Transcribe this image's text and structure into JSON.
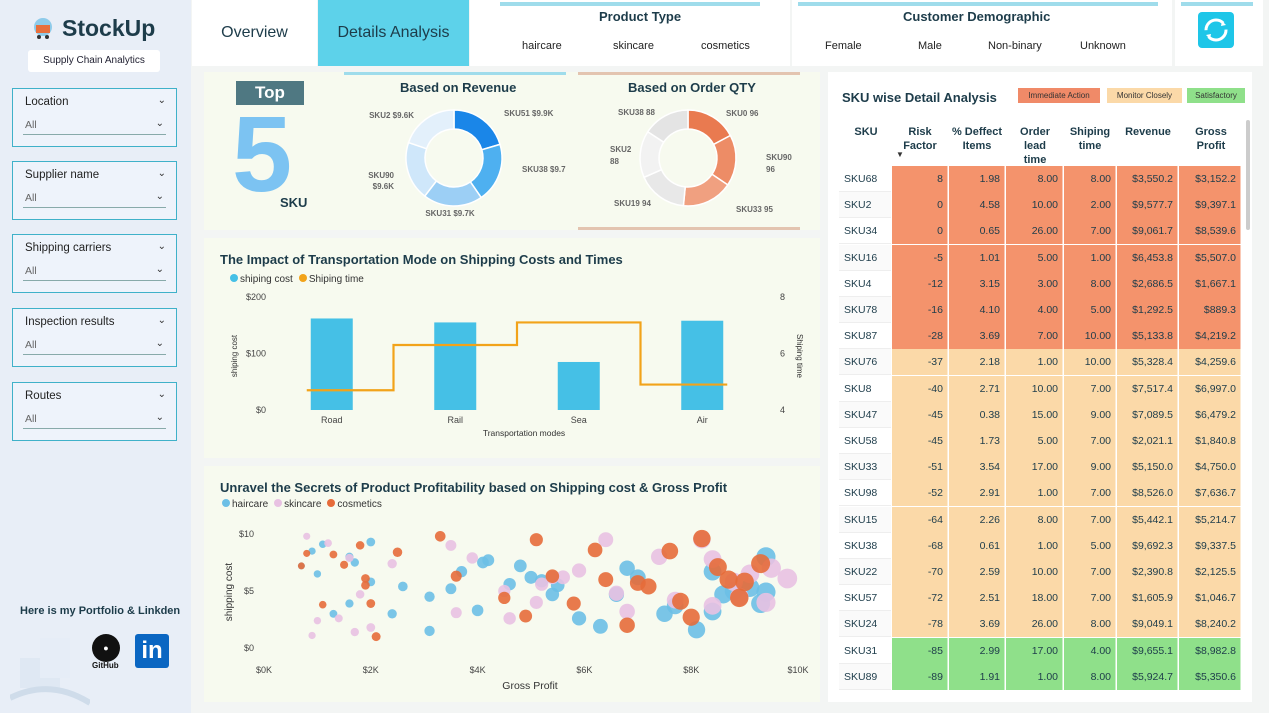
{
  "brand": {
    "name": "StockUp",
    "tagline": "Supply Chain Analytics"
  },
  "tabs": [
    {
      "label": "Overview"
    },
    {
      "label": "Details Analysis"
    }
  ],
  "filters": [
    {
      "label": "Location",
      "value": "All"
    },
    {
      "label": "Supplier name",
      "value": "All"
    },
    {
      "label": "Shipping carriers",
      "value": "All"
    },
    {
      "label": "Inspection results",
      "value": "All"
    },
    {
      "label": "Routes",
      "value": "All"
    }
  ],
  "portfolio": {
    "label": "Here is my Portfolio & Linkden",
    "github_label": "GitHub",
    "linkedin_label": "in"
  },
  "product_type": {
    "title": "Product Type",
    "options": [
      "haircare",
      "skincare",
      "cosmetics"
    ]
  },
  "customer_demo": {
    "title": "Customer Demographic",
    "options": [
      "Female",
      "Male",
      "Non-binary",
      "Unknown"
    ]
  },
  "top5": {
    "badge": "Top",
    "number": "5",
    "unit": "SKU"
  },
  "revenue_donut": {
    "title": "Based on Revenue",
    "slices": [
      {
        "label": "SKU51 $9.9K",
        "value": 9.9,
        "color": "#1a86e8"
      },
      {
        "label": "SKU38 $9.7K",
        "value": 9.7,
        "color": "#4eb0f0"
      },
      {
        "label": "SKU31 $9.7K",
        "value": 9.7,
        "color": "#9ccff5"
      },
      {
        "label": "SKU90 $9.6K",
        "value": 9.6,
        "color": "#cfe7fa"
      },
      {
        "label": "SKU2 $9.6K",
        "value": 9.6,
        "color": "#e3f0fb"
      }
    ]
  },
  "order_donut": {
    "title": "Based on Order QTY",
    "slices": [
      {
        "label": "SKU0 96",
        "value": 96,
        "color": "#e97a50"
      },
      {
        "label": "SKU90 96",
        "value": 96,
        "color": "#ed8c66"
      },
      {
        "label": "SKU33 95",
        "value": 95,
        "color": "#f0a080"
      },
      {
        "label": "SKU19 94",
        "value": 94,
        "color": "#e8e8e8"
      },
      {
        "label": "SKU2 88",
        "value": 88,
        "color": "#f2f2f2"
      },
      {
        "label": "SKU38 88",
        "value": 88,
        "color": "#e4e4e4"
      }
    ]
  },
  "transport_chart": {
    "title": "The Impact of Transportation Mode on Shipping Costs and Times",
    "legend": [
      "shiping cost",
      "Shiping time"
    ],
    "xlabel": "Transportation modes",
    "ylabel_left": "shiping cost",
    "ylabel_right": "Shiping time",
    "yticks_left": [
      "$200",
      "$100",
      "$0"
    ],
    "yticks_right": [
      "8",
      "6",
      "4"
    ]
  },
  "scatter_chart": {
    "title": "Unravel the Secrets of Product Profitability based on Shipping cost & Gross Profit",
    "legend": [
      "haircare",
      "skincare",
      "cosmetics"
    ],
    "xlabel": "Gross Profit",
    "ylabel": "shipping cost",
    "xticks": [
      "$0K",
      "$2K",
      "$4K",
      "$6K",
      "$8K",
      "$10K"
    ],
    "yticks": [
      "$10",
      "$5",
      "$0"
    ]
  },
  "chart_data": [
    {
      "type": "bar",
      "title": "The Impact of Transportation Mode on Shipping Costs and Times",
      "categories": [
        "Road",
        "Rail",
        "Sea",
        "Air"
      ],
      "series": [
        {
          "name": "shiping cost",
          "type": "bar",
          "values": [
            162,
            155,
            85,
            158
          ],
          "color": "#45c0e6"
        },
        {
          "name": "Shiping time",
          "type": "line",
          "values": [
            4.7,
            6.3,
            7.1,
            4.9
          ],
          "color": "#f2a31a"
        }
      ],
      "xlabel": "Transportation modes",
      "ylabel": "shiping cost",
      "ylim": [
        0,
        200
      ],
      "y2lim": [
        4,
        8
      ]
    },
    {
      "type": "scatter",
      "title": "Unravel the Secrets of Product Profitability based on Shipping cost & Gross Profit",
      "xlabel": "Gross Profit",
      "ylabel": "shipping cost",
      "xlim": [
        0,
        10000
      ],
      "ylim": [
        0,
        10
      ],
      "series": [
        {
          "name": "haircare",
          "color": "#6cbfe6",
          "points": [
            [
              700,
              7.2
            ],
            [
              900,
              8.5
            ],
            [
              1000,
              6.5
            ],
            [
              1100,
              9.1
            ],
            [
              1300,
              3.0
            ],
            [
              1600,
              8.0
            ],
            [
              1700,
              7.5
            ],
            [
              1600,
              3.9
            ],
            [
              2000,
              9.3
            ],
            [
              2000,
              5.8
            ],
            [
              2400,
              3.0
            ],
            [
              2600,
              5.4
            ],
            [
              3100,
              1.5
            ],
            [
              3100,
              4.5
            ],
            [
              3500,
              5.2
            ],
            [
              3700,
              6.7
            ],
            [
              4100,
              7.5
            ],
            [
              4000,
              3.3
            ],
            [
              4200,
              7.7
            ],
            [
              4600,
              5.6
            ],
            [
              4800,
              7.2
            ],
            [
              5000,
              6.2
            ],
            [
              5200,
              5.9
            ],
            [
              5500,
              5.5
            ],
            [
              5400,
              4.7
            ],
            [
              5900,
              2.6
            ],
            [
              6300,
              1.9
            ],
            [
              6600,
              4.7
            ],
            [
              7000,
              6.2
            ],
            [
              6800,
              7.0
            ],
            [
              7500,
              3.0
            ],
            [
              7700,
              3.7
            ],
            [
              8100,
              1.6
            ],
            [
              8400,
              3.2
            ],
            [
              8600,
              4.7
            ],
            [
              8800,
              5.0
            ],
            [
              8400,
              6.7
            ],
            [
              9100,
              5.3
            ],
            [
              9400,
              8.0
            ],
            [
              9300,
              3.9
            ],
            [
              9400,
              4.9
            ]
          ]
        },
        {
          "name": "skincare",
          "color": "#e8c1e2",
          "points": [
            [
              800,
              9.8
            ],
            [
              900,
              1.1
            ],
            [
              1000,
              2.4
            ],
            [
              1200,
              9.2
            ],
            [
              1400,
              2.6
            ],
            [
              1600,
              7.9
            ],
            [
              1700,
              1.4
            ],
            [
              1800,
              4.7
            ],
            [
              2000,
              1.8
            ],
            [
              2400,
              7.4
            ],
            [
              3500,
              9.0
            ],
            [
              3600,
              3.1
            ],
            [
              3900,
              7.9
            ],
            [
              4500,
              5.0
            ],
            [
              4600,
              2.6
            ],
            [
              5100,
              4.0
            ],
            [
              5200,
              5.6
            ],
            [
              5400,
              6.2
            ],
            [
              5600,
              6.2
            ],
            [
              5900,
              6.8
            ],
            [
              6400,
              9.5
            ],
            [
              6600,
              4.8
            ],
            [
              6800,
              3.2
            ],
            [
              7400,
              8.0
            ],
            [
              7700,
              4.2
            ],
            [
              8200,
              9.5
            ],
            [
              8400,
              7.8
            ],
            [
              8400,
              3.7
            ],
            [
              8800,
              5.8
            ],
            [
              8900,
              4.5
            ],
            [
              9100,
              6.5
            ],
            [
              9400,
              4.0
            ],
            [
              9500,
              7.0
            ],
            [
              9800,
              6.1
            ]
          ]
        },
        {
          "name": "cosmetics",
          "color": "#e66b3a",
          "points": [
            [
              700,
              7.2
            ],
            [
              800,
              8.3
            ],
            [
              1100,
              3.8
            ],
            [
              1300,
              8.2
            ],
            [
              1500,
              7.3
            ],
            [
              1800,
              9.0
            ],
            [
              1900,
              6.1
            ],
            [
              1900,
              5.5
            ],
            [
              2000,
              3.9
            ],
            [
              2100,
              1.0
            ],
            [
              2500,
              8.4
            ],
            [
              3300,
              9.8
            ],
            [
              3600,
              6.3
            ],
            [
              4500,
              4.4
            ],
            [
              4900,
              2.8
            ],
            [
              5100,
              9.5
            ],
            [
              5400,
              6.3
            ],
            [
              5800,
              3.9
            ],
            [
              6200,
              8.6
            ],
            [
              6400,
              6.0
            ],
            [
              6800,
              2.0
            ],
            [
              7000,
              5.7
            ],
            [
              7200,
              5.4
            ],
            [
              7800,
              4.1
            ],
            [
              7600,
              8.5
            ],
            [
              8000,
              2.7
            ],
            [
              8200,
              9.6
            ],
            [
              8500,
              7.1
            ],
            [
              8700,
              6.0
            ],
            [
              8900,
              4.4
            ],
            [
              9000,
              5.8
            ],
            [
              9300,
              7.4
            ]
          ]
        }
      ]
    },
    {
      "type": "pie",
      "title": "Based on Revenue",
      "categories": [
        "SKU51",
        "SKU38",
        "SKU31",
        "SKU90",
        "SKU2"
      ],
      "values": [
        9.9,
        9.7,
        9.7,
        9.6,
        9.6
      ]
    },
    {
      "type": "pie",
      "title": "Based on Order QTY",
      "categories": [
        "SKU0",
        "SKU90",
        "SKU33",
        "SKU19",
        "SKU2",
        "SKU38"
      ],
      "values": [
        96,
        96,
        95,
        94,
        88,
        88
      ]
    }
  ],
  "sku_table": {
    "title": "SKU wise Detail Analysis",
    "badges": [
      {
        "label": "Immediate Action",
        "color": "#f08a68"
      },
      {
        "label": "Monitor Closely",
        "color": "#fbd9a8"
      },
      {
        "label": "Satisfactory",
        "color": "#8fe08a"
      }
    ],
    "headers": [
      "SKU",
      "Risk Factor",
      "% Deffect Items",
      "Order lead time",
      "Shiping time",
      "Revenue",
      "Gross Profit"
    ],
    "rows": [
      {
        "sku": "SKU68",
        "risk": "8",
        "defect": "1.98",
        "lead": "8.00",
        "ship": "8.00",
        "rev": "$3,550.2",
        "gp": "$3,152.2",
        "status": "immediate"
      },
      {
        "sku": "SKU2",
        "risk": "0",
        "defect": "4.58",
        "lead": "10.00",
        "ship": "2.00",
        "rev": "$9,577.7",
        "gp": "$9,397.1",
        "status": "immediate"
      },
      {
        "sku": "SKU34",
        "risk": "0",
        "defect": "0.65",
        "lead": "26.00",
        "ship": "7.00",
        "rev": "$9,061.7",
        "gp": "$8,539.6",
        "status": "immediate"
      },
      {
        "sku": "SKU16",
        "risk": "-5",
        "defect": "1.01",
        "lead": "5.00",
        "ship": "1.00",
        "rev": "$6,453.8",
        "gp": "$5,507.0",
        "status": "immediate"
      },
      {
        "sku": "SKU4",
        "risk": "-12",
        "defect": "3.15",
        "lead": "3.00",
        "ship": "8.00",
        "rev": "$2,686.5",
        "gp": "$1,667.1",
        "status": "immediate"
      },
      {
        "sku": "SKU78",
        "risk": "-16",
        "defect": "4.10",
        "lead": "4.00",
        "ship": "5.00",
        "rev": "$1,292.5",
        "gp": "$889.3",
        "status": "immediate"
      },
      {
        "sku": "SKU87",
        "risk": "-28",
        "defect": "3.69",
        "lead": "7.00",
        "ship": "10.00",
        "rev": "$5,133.8",
        "gp": "$4,219.2",
        "status": "immediate"
      },
      {
        "sku": "SKU76",
        "risk": "-37",
        "defect": "2.18",
        "lead": "1.00",
        "ship": "10.00",
        "rev": "$5,328.4",
        "gp": "$4,259.6",
        "status": "monitor"
      },
      {
        "sku": "SKU8",
        "risk": "-40",
        "defect": "2.71",
        "lead": "10.00",
        "ship": "7.00",
        "rev": "$7,517.4",
        "gp": "$6,997.0",
        "status": "monitor"
      },
      {
        "sku": "SKU47",
        "risk": "-45",
        "defect": "0.38",
        "lead": "15.00",
        "ship": "9.00",
        "rev": "$7,089.5",
        "gp": "$6,479.2",
        "status": "monitor"
      },
      {
        "sku": "SKU58",
        "risk": "-45",
        "defect": "1.73",
        "lead": "5.00",
        "ship": "7.00",
        "rev": "$2,021.1",
        "gp": "$1,840.8",
        "status": "monitor"
      },
      {
        "sku": "SKU33",
        "risk": "-51",
        "defect": "3.54",
        "lead": "17.00",
        "ship": "9.00",
        "rev": "$5,150.0",
        "gp": "$4,750.0",
        "status": "monitor"
      },
      {
        "sku": "SKU98",
        "risk": "-52",
        "defect": "2.91",
        "lead": "1.00",
        "ship": "7.00",
        "rev": "$8,526.0",
        "gp": "$7,636.7",
        "status": "monitor"
      },
      {
        "sku": "SKU15",
        "risk": "-64",
        "defect": "2.26",
        "lead": "8.00",
        "ship": "7.00",
        "rev": "$5,442.1",
        "gp": "$5,214.7",
        "status": "monitor"
      },
      {
        "sku": "SKU38",
        "risk": "-68",
        "defect": "0.61",
        "lead": "1.00",
        "ship": "5.00",
        "rev": "$9,692.3",
        "gp": "$9,337.5",
        "status": "monitor"
      },
      {
        "sku": "SKU22",
        "risk": "-70",
        "defect": "2.59",
        "lead": "10.00",
        "ship": "7.00",
        "rev": "$2,390.8",
        "gp": "$2,125.5",
        "status": "monitor"
      },
      {
        "sku": "SKU57",
        "risk": "-72",
        "defect": "2.51",
        "lead": "18.00",
        "ship": "7.00",
        "rev": "$1,605.9",
        "gp": "$1,046.7",
        "status": "monitor"
      },
      {
        "sku": "SKU24",
        "risk": "-78",
        "defect": "3.69",
        "lead": "26.00",
        "ship": "8.00",
        "rev": "$9,049.1",
        "gp": "$8,240.2",
        "status": "monitor"
      },
      {
        "sku": "SKU31",
        "risk": "-85",
        "defect": "2.99",
        "lead": "17.00",
        "ship": "4.00",
        "rev": "$9,655.1",
        "gp": "$8,982.8",
        "status": "satisfactory"
      },
      {
        "sku": "SKU89",
        "risk": "-89",
        "defect": "1.91",
        "lead": "1.00",
        "ship": "8.00",
        "rev": "$5,924.7",
        "gp": "$5,350.6",
        "status": "satisfactory"
      }
    ]
  },
  "colors": {
    "immediate": "#f4936c",
    "monitor": "#fbd9a8",
    "satisfactory": "#8fe08a",
    "accent": "#5dd2ea"
  }
}
